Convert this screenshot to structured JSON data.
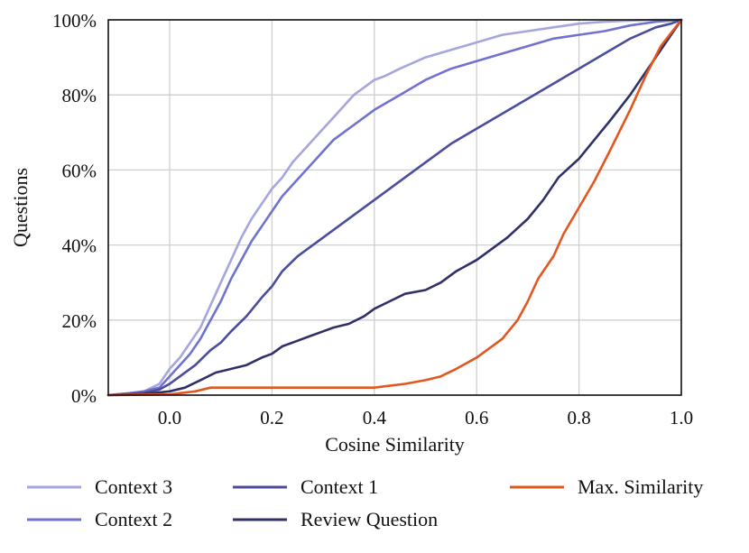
{
  "chart_data": {
    "type": "line",
    "xlabel": "Cosine Similarity",
    "ylabel": "Questions",
    "xlim": [
      -0.12,
      1.0
    ],
    "ylim": [
      0,
      100
    ],
    "x_ticks": [
      0.0,
      0.2,
      0.4,
      0.6,
      0.8,
      1.0
    ],
    "x_tick_labels": [
      "0.0",
      "0.2",
      "0.4",
      "0.6",
      "0.8",
      "1.0"
    ],
    "y_ticks": [
      0,
      20,
      40,
      60,
      80,
      100
    ],
    "y_tick_labels": [
      "0%",
      "20%",
      "40%",
      "60%",
      "80%",
      "100%"
    ],
    "grid": true,
    "legend_position": "below plot",
    "series": [
      {
        "name": "Context 3",
        "color": "#a4a6dc",
        "x": [
          -0.12,
          -0.08,
          -0.05,
          -0.02,
          0.0,
          0.02,
          0.04,
          0.06,
          0.08,
          0.1,
          0.12,
          0.14,
          0.16,
          0.18,
          0.2,
          0.22,
          0.24,
          0.26,
          0.28,
          0.3,
          0.32,
          0.34,
          0.36,
          0.38,
          0.4,
          0.42,
          0.45,
          0.5,
          0.55,
          0.6,
          0.65,
          0.7,
          0.75,
          0.8,
          0.85,
          0.9,
          0.95,
          1.0
        ],
        "values": [
          0,
          0.5,
          1,
          3,
          7,
          10,
          14,
          18,
          24,
          30,
          36,
          42,
          47,
          51,
          55,
          58,
          62,
          65,
          68,
          71,
          74,
          77,
          80,
          82,
          84,
          85,
          87,
          90,
          92,
          94,
          96,
          97,
          98,
          99,
          99.5,
          99.8,
          100,
          100
        ]
      },
      {
        "name": "Context 2",
        "color": "#7072cf",
        "x": [
          -0.12,
          -0.08,
          -0.05,
          -0.02,
          0.0,
          0.02,
          0.04,
          0.06,
          0.08,
          0.1,
          0.12,
          0.14,
          0.16,
          0.18,
          0.2,
          0.22,
          0.24,
          0.26,
          0.28,
          0.3,
          0.32,
          0.34,
          0.36,
          0.38,
          0.4,
          0.45,
          0.5,
          0.55,
          0.6,
          0.65,
          0.7,
          0.75,
          0.8,
          0.85,
          0.9,
          0.95,
          1.0
        ],
        "values": [
          0,
          0.5,
          1,
          2,
          5,
          8,
          11,
          15,
          20,
          25,
          31,
          36,
          41,
          45,
          49,
          53,
          56,
          59,
          62,
          65,
          68,
          70,
          72,
          74,
          76,
          80,
          84,
          87,
          89,
          91,
          93,
          95,
          96,
          97,
          98.5,
          99.5,
          100
        ]
      },
      {
        "name": "Context 1",
        "color": "#4a4d9c",
        "x": [
          -0.12,
          -0.08,
          -0.05,
          -0.02,
          0.0,
          0.02,
          0.05,
          0.08,
          0.1,
          0.12,
          0.15,
          0.18,
          0.2,
          0.22,
          0.25,
          0.28,
          0.3,
          0.33,
          0.36,
          0.4,
          0.43,
          0.46,
          0.5,
          0.55,
          0.6,
          0.65,
          0.7,
          0.75,
          0.8,
          0.85,
          0.9,
          0.95,
          0.98,
          1.0
        ],
        "values": [
          0,
          0.3,
          0.6,
          1.5,
          3,
          5,
          8,
          12,
          14,
          17,
          21,
          26,
          29,
          33,
          37,
          40,
          42,
          45,
          48,
          52,
          55,
          58,
          62,
          67,
          71,
          75,
          79,
          83,
          87,
          91,
          95,
          98,
          99,
          100
        ]
      },
      {
        "name": "Review Question",
        "color": "#2f3068",
        "x": [
          -0.12,
          -0.05,
          0.0,
          0.03,
          0.06,
          0.09,
          0.12,
          0.15,
          0.18,
          0.2,
          0.22,
          0.25,
          0.28,
          0.3,
          0.32,
          0.35,
          0.38,
          0.4,
          0.43,
          0.46,
          0.5,
          0.53,
          0.56,
          0.6,
          0.63,
          0.66,
          0.7,
          0.73,
          0.76,
          0.8,
          0.83,
          0.86,
          0.9,
          0.93,
          0.96,
          1.0
        ],
        "values": [
          0,
          0.3,
          1,
          2,
          4,
          6,
          7,
          8,
          10,
          11,
          13,
          14.5,
          16,
          17,
          18,
          19,
          21,
          23,
          25,
          27,
          28,
          30,
          33,
          36,
          39,
          42,
          47,
          52,
          58,
          63,
          68,
          73,
          80,
          86,
          92,
          100
        ]
      },
      {
        "name": "Max. Similarity",
        "color": "#e2571e",
        "x": [
          -0.12,
          0.0,
          0.05,
          0.08,
          0.1,
          0.2,
          0.3,
          0.4,
          0.43,
          0.46,
          0.5,
          0.53,
          0.56,
          0.6,
          0.62,
          0.65,
          0.68,
          0.7,
          0.72,
          0.75,
          0.77,
          0.8,
          0.83,
          0.86,
          0.9,
          0.93,
          0.96,
          1.0
        ],
        "values": [
          0,
          0.2,
          1,
          2,
          2,
          2,
          2,
          2,
          2.5,
          3,
          4,
          5,
          7,
          10,
          12,
          15,
          20,
          25,
          31,
          37,
          43,
          50,
          57,
          65,
          76,
          85,
          93,
          100
        ]
      }
    ]
  }
}
